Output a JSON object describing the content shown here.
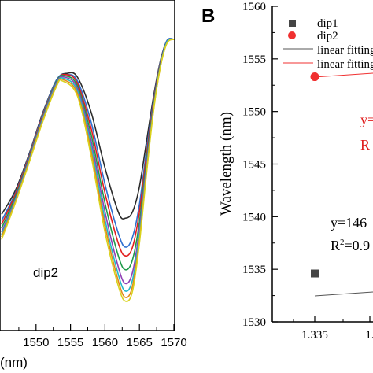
{
  "chart_data": [
    {
      "type": "line",
      "panel": "left",
      "xlabel": "(nm)",
      "xlim": [
        1545,
        1570
      ],
      "xticks": [
        1550,
        1555,
        1560,
        1565,
        1570
      ],
      "annotations": [
        "dip2"
      ],
      "series": [
        {
          "color": "#2b2b2b",
          "x": [
            1545,
            1547,
            1549,
            1551,
            1553,
            1554.5,
            1556,
            1558,
            1560,
            1562,
            1563,
            1564,
            1565,
            1566,
            1567,
            1568,
            1569,
            1570
          ],
          "y": [
            0.36,
            0.55,
            0.84,
            1.17,
            1.43,
            1.48,
            1.45,
            1.17,
            0.73,
            0.37,
            0.33,
            0.38,
            0.58,
            0.93,
            1.28,
            1.57,
            1.74,
            1.75
          ]
        },
        {
          "color": "#2f6fd0",
          "x": [
            1545,
            1547,
            1549,
            1551,
            1553,
            1554.4,
            1556,
            1558,
            1560,
            1562,
            1563,
            1564,
            1565,
            1566,
            1567,
            1568,
            1569,
            1570
          ],
          "y": [
            0.31,
            0.53,
            0.83,
            1.16,
            1.43,
            1.47,
            1.42,
            1.09,
            0.6,
            0.2,
            0.1,
            0.18,
            0.44,
            0.86,
            1.25,
            1.56,
            1.74,
            1.75
          ]
        },
        {
          "color": "#e21e1e",
          "x": [
            1545,
            1547,
            1549,
            1551,
            1553,
            1554.3,
            1556,
            1558,
            1560,
            1562,
            1563,
            1564,
            1565,
            1566,
            1567,
            1568,
            1569,
            1570
          ],
          "y": [
            0.28,
            0.52,
            0.82,
            1.15,
            1.42,
            1.47,
            1.4,
            1.04,
            0.53,
            0.12,
            0.03,
            0.1,
            0.38,
            0.82,
            1.23,
            1.55,
            1.73,
            1.75
          ]
        },
        {
          "color": "#1f9a4a",
          "x": [
            1545,
            1547,
            1549,
            1551,
            1553,
            1554.2,
            1556,
            1558,
            1560,
            1562,
            1563,
            1564,
            1565,
            1566,
            1567,
            1568,
            1569,
            1570
          ],
          "y": [
            0.25,
            0.5,
            0.81,
            1.14,
            1.42,
            1.46,
            1.38,
            0.99,
            0.45,
            0.02,
            -0.08,
            0.0,
            0.3,
            0.78,
            1.21,
            1.54,
            1.73,
            1.75
          ]
        },
        {
          "color": "#8e3fb5",
          "x": [
            1545,
            1547,
            1549,
            1551,
            1553,
            1554.1,
            1556,
            1558,
            1560,
            1562,
            1563,
            1564,
            1565,
            1566,
            1567,
            1568,
            1569,
            1570
          ],
          "y": [
            0.22,
            0.48,
            0.8,
            1.13,
            1.41,
            1.45,
            1.36,
            0.94,
            0.38,
            -0.07,
            -0.19,
            -0.1,
            0.24,
            0.74,
            1.19,
            1.53,
            1.73,
            1.75
          ]
        },
        {
          "color": "#22b8c8",
          "x": [
            1545,
            1547,
            1549,
            1551,
            1553,
            1554,
            1556,
            1558,
            1560,
            1562,
            1563,
            1564,
            1565,
            1566,
            1567,
            1568,
            1569,
            1570
          ],
          "y": [
            0.2,
            0.47,
            0.79,
            1.12,
            1.4,
            1.44,
            1.34,
            0.9,
            0.32,
            -0.13,
            -0.25,
            -0.16,
            0.2,
            0.71,
            1.18,
            1.53,
            1.73,
            1.75
          ]
        },
        {
          "color": "#e2891b",
          "x": [
            1545,
            1547,
            1549,
            1551,
            1553,
            1553.9,
            1556,
            1558,
            1560,
            1562,
            1563,
            1564,
            1565,
            1566,
            1567,
            1568,
            1569,
            1570
          ],
          "y": [
            0.18,
            0.46,
            0.78,
            1.11,
            1.39,
            1.43,
            1.32,
            0.86,
            0.27,
            -0.18,
            -0.3,
            -0.21,
            0.16,
            0.69,
            1.17,
            1.52,
            1.72,
            1.75
          ]
        },
        {
          "color": "#d9d21c",
          "x": [
            1545,
            1547,
            1549,
            1551,
            1553,
            1553.8,
            1556,
            1558,
            1560,
            1562,
            1563,
            1564,
            1565,
            1566,
            1567,
            1568,
            1569,
            1570
          ],
          "y": [
            0.16,
            0.45,
            0.77,
            1.1,
            1.38,
            1.42,
            1.3,
            0.82,
            0.22,
            -0.22,
            -0.33,
            -0.25,
            0.13,
            0.67,
            1.16,
            1.52,
            1.72,
            1.75
          ]
        }
      ]
    },
    {
      "type": "scatter",
      "panel": "right",
      "panel_label": "B",
      "ylabel": "Wavelength (nm)",
      "ylim": [
        1530,
        1560
      ],
      "yticks": [
        1530,
        1535,
        1540,
        1545,
        1550,
        1555,
        1560
      ],
      "xticks": [
        "1.335",
        "1."
      ],
      "legend_placement": "top-left",
      "legend": [
        "dip1",
        "dip2",
        "linear fitting",
        "linear fitting"
      ],
      "annotations": {
        "red_eq_1": "y=",
        "red_eq_2": "R",
        "black_eq": "y=146",
        "black_r2_prefix": "R",
        "black_r2_suffix": "=0.9"
      },
      "series": [
        {
          "name": "dip1",
          "marker": "square",
          "color": "#454545",
          "x": [
            1.335
          ],
          "y": [
            1534.6
          ]
        },
        {
          "name": "dip2",
          "marker": "circle",
          "color": "#f03030",
          "x": [
            1.335
          ],
          "y": [
            1553.3
          ]
        }
      ]
    }
  ]
}
